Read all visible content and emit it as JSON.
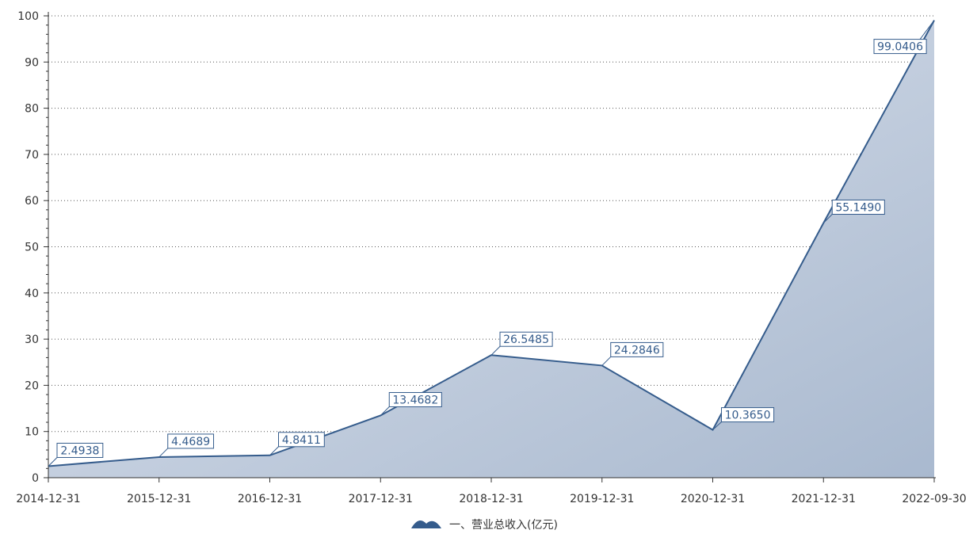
{
  "chart_data": {
    "type": "area",
    "categories": [
      "2014-12-31",
      "2015-12-31",
      "2016-12-31",
      "2017-12-31",
      "2018-12-31",
      "2019-12-31",
      "2020-12-31",
      "2021-12-31",
      "2022-09-30"
    ],
    "series": [
      {
        "name": "一、营业总收入(亿元)",
        "values": [
          2.4938,
          4.4689,
          4.8411,
          13.4682,
          26.5485,
          24.2846,
          10.365,
          55.149,
          99.0406
        ],
        "labels": [
          "2.4938",
          "4.4689",
          "4.8411",
          "13.4682",
          "26.5485",
          "24.2846",
          "10.3650",
          "55.1490",
          "99.0406"
        ]
      }
    ],
    "ylim": [
      0,
      100
    ],
    "yticks": [
      0,
      10,
      20,
      30,
      40,
      50,
      60,
      70,
      80,
      90,
      100
    ],
    "ytick_labels": [
      "0",
      "10",
      "20",
      "30",
      "40",
      "50",
      "60",
      "70",
      "80",
      "90",
      "100"
    ],
    "grid": "horizontal dotted",
    "legend": "bottom-center",
    "colors": {
      "line": "#355c8c",
      "fill_top": "#dfe5ef",
      "fill_bottom": "#a9b9cf",
      "axis": "#333333",
      "grid": "#555555"
    }
  }
}
